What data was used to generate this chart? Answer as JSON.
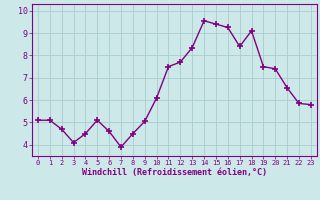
{
  "x": [
    0,
    1,
    2,
    3,
    4,
    5,
    6,
    7,
    8,
    9,
    10,
    11,
    12,
    13,
    14,
    15,
    16,
    17,
    18,
    19,
    20,
    21,
    22,
    23
  ],
  "y": [
    5.1,
    5.1,
    4.7,
    4.1,
    4.5,
    5.1,
    4.6,
    3.9,
    4.5,
    5.05,
    6.1,
    7.5,
    7.7,
    8.35,
    9.55,
    9.4,
    9.25,
    8.4,
    9.1,
    7.5,
    7.4,
    6.55,
    5.85,
    5.8
  ],
  "line_color": "#800080",
  "marker": "+",
  "marker_size": 4,
  "marker_lw": 1.2,
  "line_width": 1.0,
  "linestyle": "-",
  "bg_color": "#cce8e8",
  "grid_color": "#aacccc",
  "xlabel": "Windchill (Refroidissement éolien,°C)",
  "xlabel_color": "#800080",
  "tick_color": "#800080",
  "xlim": [
    -0.5,
    23.5
  ],
  "ylim": [
    3.5,
    10.3
  ],
  "yticks": [
    4,
    5,
    6,
    7,
    8,
    9,
    10
  ],
  "xticks": [
    0,
    1,
    2,
    3,
    4,
    5,
    6,
    7,
    8,
    9,
    10,
    11,
    12,
    13,
    14,
    15,
    16,
    17,
    18,
    19,
    20,
    21,
    22,
    23
  ],
  "tick_fontsize": 5,
  "xlabel_fontsize": 6
}
